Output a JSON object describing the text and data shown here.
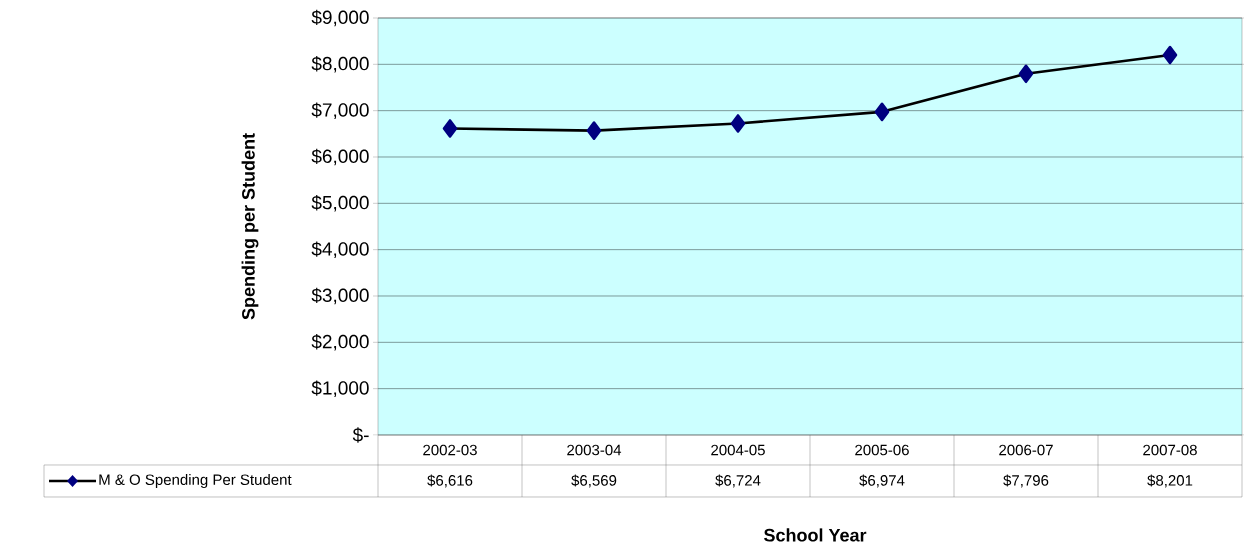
{
  "chart_data": {
    "type": "line",
    "xlabel": "School Year",
    "ylabel": "Spending per Student",
    "categories": [
      "2002-03",
      "2003-04",
      "2004-05",
      "2005-06",
      "2006-07",
      "2007-08"
    ],
    "series": [
      {
        "name": "M & O Spending Per Student",
        "color": "#000080",
        "values": [
          6616,
          6569,
          6724,
          6974,
          7796,
          8201
        ],
        "value_labels": [
          "$6,616",
          "$6,569",
          "$6,724",
          "$6,974",
          "$7,796",
          "$8,201"
        ]
      }
    ],
    "ylim": [
      0,
      9000
    ],
    "yticks": [
      {
        "value": 0,
        "label": "$-"
      },
      {
        "value": 1000,
        "label": "$1,000"
      },
      {
        "value": 2000,
        "label": "$2,000"
      },
      {
        "value": 3000,
        "label": "$3,000"
      },
      {
        "value": 4000,
        "label": "$4,000"
      },
      {
        "value": 5000,
        "label": "$5,000"
      },
      {
        "value": 6000,
        "label": "$6,000"
      },
      {
        "value": 7000,
        "label": "$7,000"
      },
      {
        "value": 8000,
        "label": "$8,000"
      },
      {
        "value": 9000,
        "label": "$9,000"
      }
    ],
    "grid": "y",
    "legend": "bottom",
    "marker": "diamond",
    "line_style": "solid"
  }
}
